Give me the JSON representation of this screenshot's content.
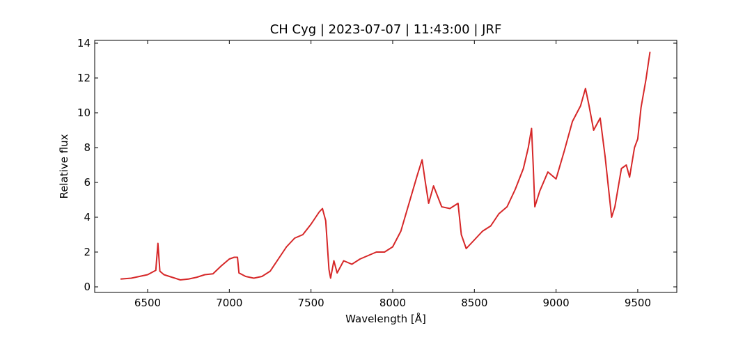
{
  "chart_data": {
    "type": "line",
    "title": "CH Cyg | 2023-07-07 | 11:43:00 | JRF",
    "x_label": "Wavelength [Å]",
    "y_label": "Relative flux",
    "x": [
      6334,
      6400,
      6450,
      6500,
      6530,
      6550,
      6563,
      6575,
      6600,
      6650,
      6700,
      6750,
      6800,
      6850,
      6900,
      6950,
      7000,
      7030,
      7050,
      7059,
      7100,
      7150,
      7200,
      7250,
      7300,
      7350,
      7400,
      7450,
      7500,
      7550,
      7570,
      7590,
      7610,
      7620,
      7640,
      7660,
      7700,
      7750,
      7800,
      7850,
      7900,
      7950,
      8000,
      8050,
      8100,
      8150,
      8180,
      8200,
      8220,
      8250,
      8300,
      8350,
      8400,
      8420,
      8450,
      8500,
      8550,
      8600,
      8650,
      8700,
      8750,
      8800,
      8830,
      8850,
      8860,
      8870,
      8900,
      8950,
      9000,
      9050,
      9100,
      9150,
      9180,
      9200,
      9230,
      9270,
      9300,
      9340,
      9360,
      9400,
      9430,
      9450,
      9480,
      9500,
      9520,
      9550,
      9575
    ],
    "series": [
      {
        "name": "CH Cyg",
        "color": "#d62728",
        "values": [
          0.45,
          0.5,
          0.6,
          0.7,
          0.85,
          0.95,
          2.5,
          0.9,
          0.7,
          0.55,
          0.4,
          0.45,
          0.55,
          0.7,
          0.75,
          1.2,
          1.6,
          1.7,
          1.7,
          0.8,
          0.6,
          0.5,
          0.6,
          0.9,
          1.6,
          2.3,
          2.8,
          3.0,
          3.6,
          4.3,
          4.5,
          3.8,
          1.0,
          0.5,
          1.5,
          0.8,
          1.5,
          1.3,
          1.6,
          1.8,
          2.0,
          2.0,
          2.3,
          3.2,
          4.8,
          6.4,
          7.3,
          6.0,
          4.8,
          5.8,
          4.6,
          4.5,
          4.8,
          3.0,
          2.2,
          2.7,
          3.2,
          3.5,
          4.2,
          4.6,
          5.6,
          6.8,
          8.0,
          9.1,
          7.0,
          4.6,
          5.5,
          6.6,
          6.2,
          7.8,
          9.5,
          10.4,
          11.4,
          10.5,
          9.0,
          9.7,
          7.5,
          4.0,
          4.6,
          6.8,
          7.0,
          6.3,
          8.0,
          8.5,
          10.3,
          11.9,
          13.5
        ]
      }
    ],
    "xlim": [
      6176,
      9739
    ],
    "ylim": [
      -0.32,
      14.16
    ],
    "xticks": [
      6500,
      7000,
      7500,
      8000,
      8500,
      9000,
      9500
    ],
    "yticks": [
      0,
      2,
      4,
      6,
      8,
      10,
      12,
      14
    ],
    "grid": false
  }
}
